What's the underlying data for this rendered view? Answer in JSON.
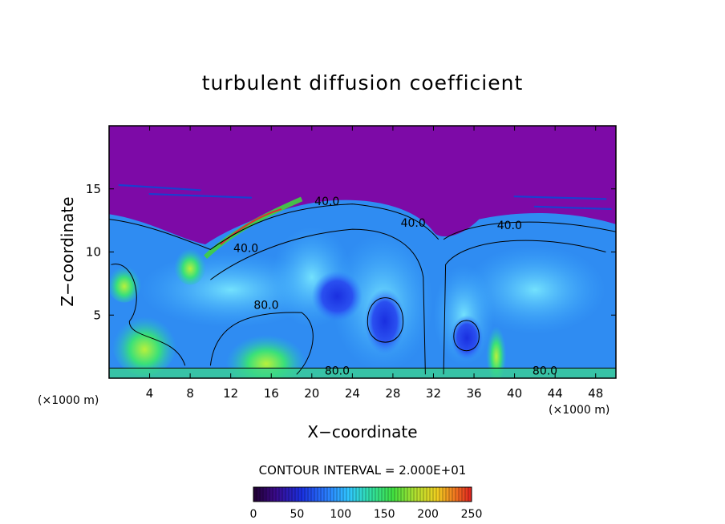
{
  "chart_data": {
    "type": "heatmap",
    "title": "turbulent diffusion coefficient",
    "xlabel": "X−coordinate",
    "ylabel": "Z−coordinate",
    "x_unit": "(×1000 m)",
    "y_unit": "(×1000 m)",
    "xlim": [
      0,
      50
    ],
    "ylim": [
      0,
      20
    ],
    "xticks": [
      4,
      8,
      12,
      16,
      20,
      24,
      28,
      32,
      36,
      40,
      44,
      48
    ],
    "yticks": [
      5,
      10,
      15
    ],
    "contour_interval_text": "CONTOUR INTERVAL = 2.000E+01",
    "contour_interval": 20,
    "colorbar": {
      "min": 0,
      "max": 250,
      "ticks": [
        0,
        50,
        100,
        150,
        200,
        250
      ]
    },
    "contour_labels": [
      {
        "text": "40.0",
        "x": 21.5,
        "y": 13.7
      },
      {
        "text": "40.0",
        "x": 13.5,
        "y": 10.0
      },
      {
        "text": "40.0",
        "x": 30.0,
        "y": 12.0
      },
      {
        "text": "40.0",
        "x": 39.5,
        "y": 11.8
      },
      {
        "text": "80.0",
        "x": 15.5,
        "y": 5.5
      },
      {
        "text": "80.0",
        "x": 22.5,
        "y": 0.3
      },
      {
        "text": "80.0",
        "x": 43.0,
        "y": 0.3
      }
    ],
    "grid": false,
    "legend": "colorbar-bottom"
  }
}
